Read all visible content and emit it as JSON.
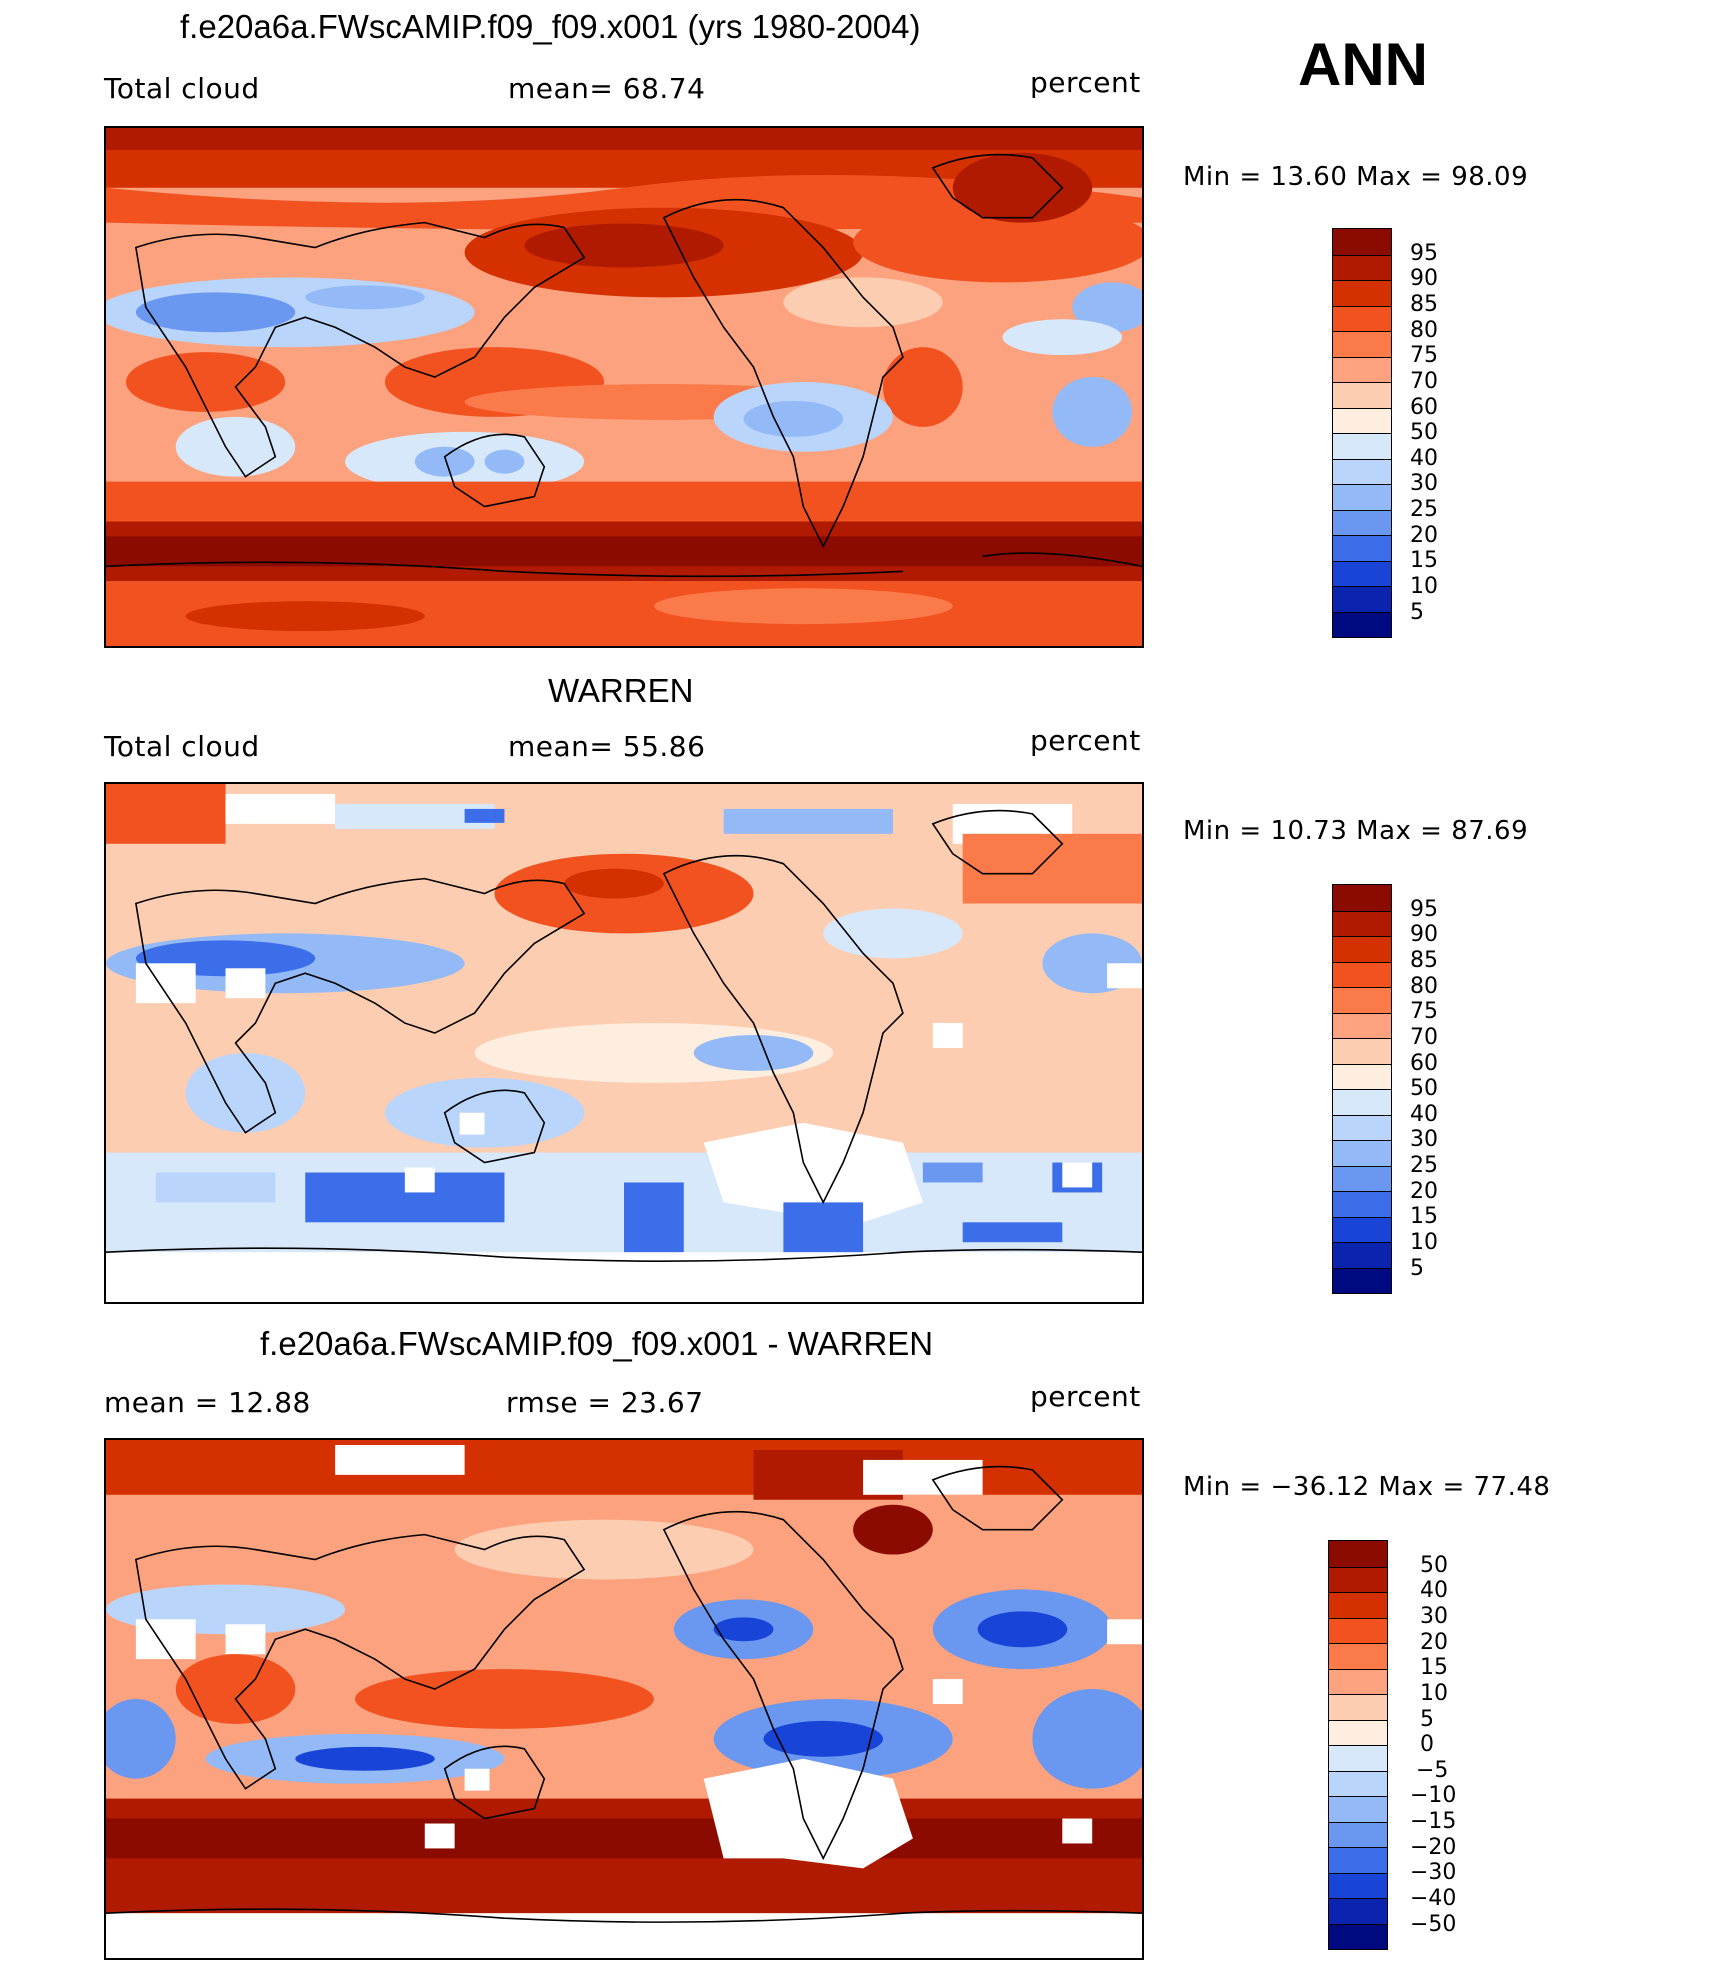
{
  "season": "ANN",
  "units": "percent",
  "panels": [
    {
      "title": "f.e20a6a.FWscAMIP.f09_f09.x001 (yrs 1980-2004)",
      "left_label": "Total cloud",
      "mid_label": "mean=   68.74",
      "right_label": "percent",
      "minmax": "Min  =    13.60  Max  =    98.09",
      "colorbar_labels": [
        "95",
        "90",
        "85",
        "80",
        "75",
        "70",
        "60",
        "50",
        "40",
        "30",
        "25",
        "20",
        "15",
        "10",
        "5"
      ]
    },
    {
      "title": "WARREN",
      "left_label": "Total cloud",
      "mid_label": "mean=   55.86",
      "right_label": "percent",
      "minmax": "Min  =    10.73  Max  =    87.69",
      "colorbar_labels": [
        "95",
        "90",
        "85",
        "80",
        "75",
        "70",
        "60",
        "50",
        "40",
        "30",
        "25",
        "20",
        "15",
        "10",
        "5"
      ]
    },
    {
      "title": "f.e20a6a.FWscAMIP.f09_f09.x001 - WARREN",
      "left_label": "mean  =    12.88",
      "mid_label": "rmse  =    23.67",
      "right_label": "percent",
      "minmax": "Min  = −36.12  Max  =    77.48",
      "colorbar_labels": [
        "50",
        "40",
        "30",
        "20",
        "15",
        "10",
        "5",
        "0",
        "−5",
        "−10",
        "−15",
        "−20",
        "−30",
        "−40",
        "−50"
      ]
    }
  ],
  "colorbar_colors": [
    "#8b0b00",
    "#b01a00",
    "#d43000",
    "#f2521f",
    "#fb7a4a",
    "#fca27f",
    "#fdcdb1",
    "#fdeedf",
    "#d7e8fb",
    "#b9d5fb",
    "#93b9f7",
    "#6a97f0",
    "#3c6eea",
    "#1844d8",
    "#0a24b0",
    "#000a80"
  ]
}
